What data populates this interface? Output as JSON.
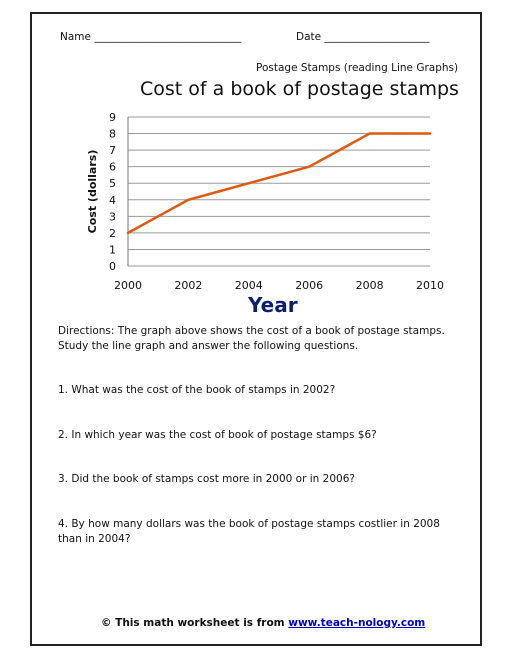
{
  "header": {
    "name_label": "Name ____________________________",
    "date_label": "Date ____________________"
  },
  "subtitle": "Postage Stamps (reading Line Graphs)",
  "chart_data": {
    "type": "line",
    "title": "Cost of a book of postage stamps",
    "xlabel": "Year",
    "ylabel": "Cost (dollars)",
    "x": [
      2000,
      2001,
      2002,
      2003,
      2004,
      2005,
      2006,
      2007,
      2008,
      2009,
      2010
    ],
    "series": [
      {
        "values": [
          2,
          3,
          4,
          4.5,
          5,
          5.5,
          6,
          7,
          8,
          8,
          8
        ]
      }
    ],
    "xticks": [
      "2000",
      "2002",
      "2004",
      "2006",
      "2008",
      "2010"
    ],
    "yticks": [
      "0",
      "1",
      "2",
      "3",
      "4",
      "5",
      "6",
      "7",
      "8",
      "9"
    ],
    "xlim": [
      2000,
      2010
    ],
    "ylim": [
      0,
      9
    ],
    "grid": true,
    "line_color": "#e0590f"
  },
  "directions": "Directions: The graph above shows the cost of a book of postage stamps. Study the line graph and answer the following questions.",
  "questions": [
    "1. What was the cost of the book of stamps in 2002?",
    "2. In which year was the cost of book of postage stamps $6?",
    "3. Did the book of stamps cost more in 2000 or in 2006?",
    " 4. By how many dollars was the book of postage stamps costlier in 2008 than in 2004?"
  ],
  "footer": {
    "prefix": "© This math worksheet is from ",
    "link": "www.teach-nology.com"
  }
}
